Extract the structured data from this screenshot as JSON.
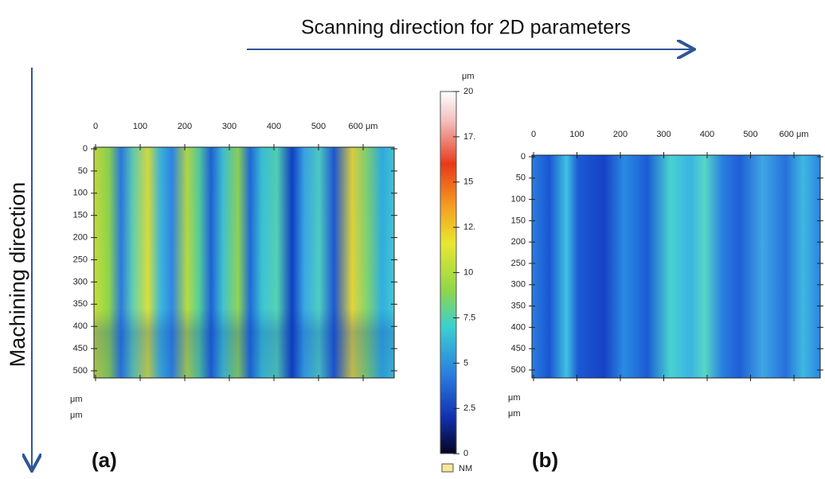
{
  "title": "Scanning direction for 2D parameters",
  "side_label": "Machining direction",
  "panel_a": {
    "label": "(a)",
    "x_ticks": [
      "0",
      "100",
      "200",
      "300",
      "400",
      "500",
      "600 μm"
    ],
    "y_ticks": [
      "0",
      "50",
      "100",
      "150",
      "200",
      "250",
      "300",
      "350",
      "400",
      "450",
      "500"
    ],
    "units": [
      "μm",
      "μm"
    ]
  },
  "colorbar": {
    "unit": "μm",
    "ticks": [
      "20",
      "17.",
      "15",
      "12.",
      "10",
      "7.5",
      "5",
      "2.5",
      "0"
    ],
    "legend": "NM"
  },
  "panel_b": {
    "label": "(b)",
    "x_ticks": [
      "0",
      "100",
      "200",
      "300",
      "400",
      "500",
      "600 μm"
    ],
    "y_ticks": [
      "0",
      "50",
      "100",
      "150",
      "200",
      "250",
      "300",
      "350",
      "400",
      "450",
      "500"
    ],
    "units": [
      "μm",
      "μm"
    ]
  }
}
